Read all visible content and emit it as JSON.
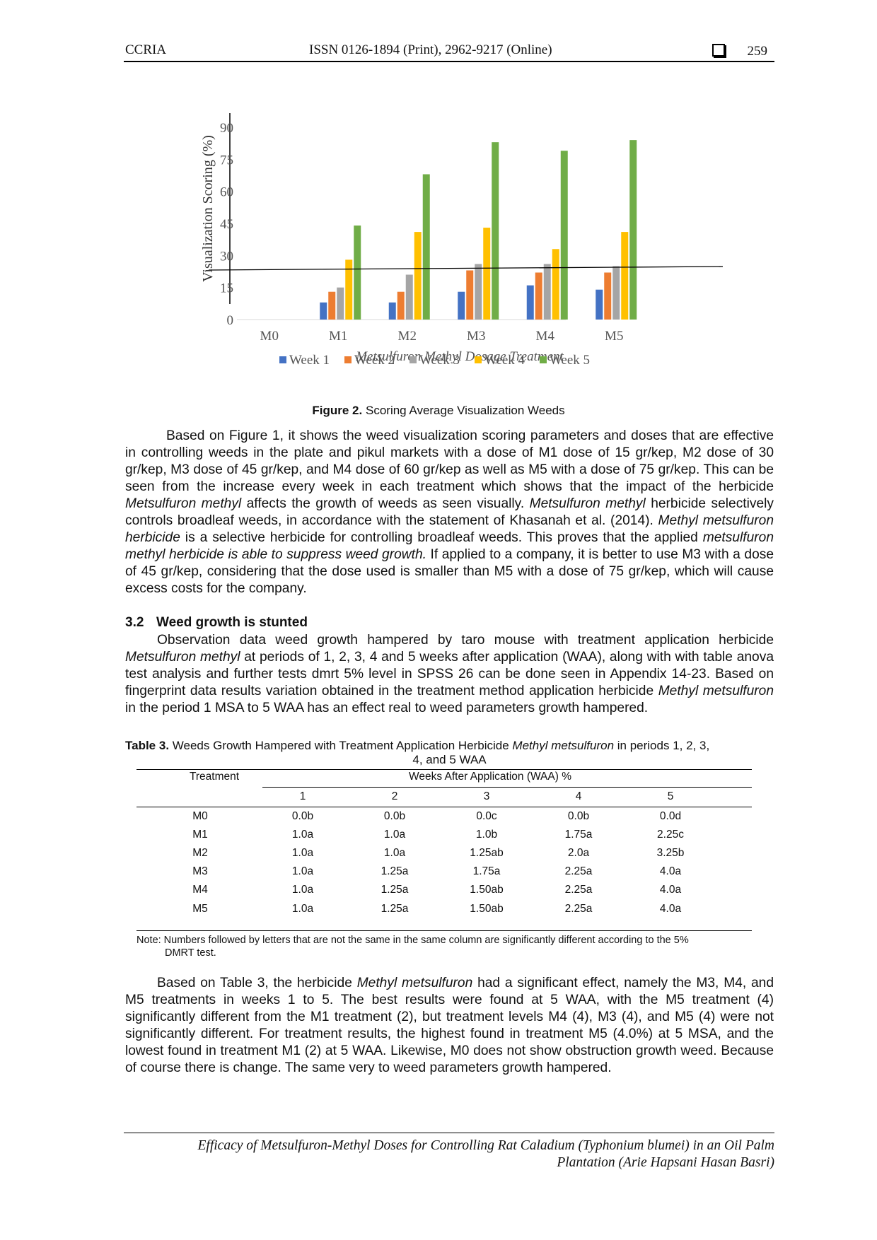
{
  "header": {
    "journal": "CCRIA",
    "issn": "ISSN 0126-1894 (Print), 2962-9217 (Online)",
    "page_number": "259"
  },
  "figure": {
    "label": "Figure 2.",
    "caption": "Scoring Average Visualization Weeds"
  },
  "chart_data": {
    "type": "bar",
    "categories": [
      "M0",
      "M1",
      "M2",
      "M3",
      "M4",
      "M5"
    ],
    "series": [
      {
        "name": "Week 1",
        "color": "#4472C4",
        "values": [
          0,
          8,
          8,
          13,
          16,
          14
        ]
      },
      {
        "name": "Week 2",
        "color": "#ED7D31",
        "values": [
          0,
          13,
          13,
          23,
          22,
          22
        ]
      },
      {
        "name": "Week 3",
        "color": "#A5A5A5",
        "values": [
          0,
          15,
          21,
          26,
          26,
          25
        ]
      },
      {
        "name": "Week 4",
        "color": "#FFC000",
        "values": [
          0,
          28,
          41,
          43,
          33,
          41
        ]
      },
      {
        "name": "Week 5",
        "color": "#70AD47",
        "values": [
          0,
          44,
          68,
          83,
          79,
          84
        ]
      }
    ],
    "y_ticks": [
      0,
      15,
      30,
      45,
      60,
      75,
      90
    ],
    "ylim": [
      0,
      90
    ],
    "ylabel": "Visualization Scoring (%)",
    "xlabel": "Metsulfuron Methyl Dosage Treatment",
    "legend": "bottom",
    "grid": false
  },
  "p1": {
    "t1": "Based on Figure 1, it shows the weed visualization scoring parameters and doses that are effective in controlling weeds in the plate and pikul markets with a dose of M1 dose of 15 gr/kep, M2 dose of 30 gr/kep, M3 dose of 45 gr/kep, and M4 dose of 60 gr/kep as well as M5 with a dose of 75 gr/kep. This can be seen from the increase every week in each treatment which shows that the impact of the herbicide ",
    "i1": "Metsulfuron methyl",
    "t2": " affects the growth of weeds as seen visually. ",
    "i2": "Metsulfuron methyl",
    "t3": " herbicide selectively controls broadleaf weeds, in accordance with the statement of Khasanah et al. (2014). ",
    "i3": "Methyl metsulfuron herbicide",
    "t4": " is a selective herbicide for controlling broadleaf weeds. This proves that the applied ",
    "i4": "metsulfuron methyl herbicide is able to suppress weed growth.",
    "t5": " If applied to a company, it is better to use M3 with a dose of 45 gr/kep, considering that the dose used is smaller than M5 with a dose of 75 gr/kep, which will cause excess costs for the company."
  },
  "section": {
    "number": "3.2",
    "title": "Weed growth is stunted"
  },
  "p2": {
    "t1": "Observation data weed growth hampered by taro mouse with treatment application herbicide ",
    "i1": "Metsulfuron methyl",
    "t2": " at periods of 1, 2, 3, 4 and 5 weeks after application (WAA), along with with table anova test analysis and further tests dmrt 5% level in SPSS 26 can be done seen in Appendix 14-23. Based on fingerprint data results variation obtained in the treatment method application herbicide ",
    "i2": "Methyl metsulfuron",
    "t3": " in the period 1 MSA to 5 WAA has an effect real to weed parameters growth hampered."
  },
  "table": {
    "label": "Table 3.",
    "caption_t1": " Weeds Growth Hampered with Treatment Application Herbicide ",
    "caption_i1": "Methyl metsulfuron",
    "caption_t2": " in periods 1, 2, 3,",
    "caption_t3": "4, and 5 WAA",
    "header_treatment": "Treatment",
    "header_group": "Weeks After Application (WAA) %",
    "weeks": [
      "1",
      "2",
      "3",
      "4",
      "5"
    ],
    "rows": [
      {
        "treatment": "M0",
        "values": [
          "0.0b",
          "0.0b",
          "0.0c",
          "0.0b",
          "0.0d"
        ]
      },
      {
        "treatment": "M1",
        "values": [
          "1.0a",
          "1.0a",
          "1.0b",
          "1.75a",
          "2.25c"
        ]
      },
      {
        "treatment": "M2",
        "values": [
          "1.0a",
          "1.0a",
          "1.25ab",
          "2.0a",
          "3.25b"
        ]
      },
      {
        "treatment": "M3",
        "values": [
          "1.0a",
          "1.25a",
          "1.75a",
          "2.25a",
          "4.0a"
        ]
      },
      {
        "treatment": "M4",
        "values": [
          "1.0a",
          "1.25a",
          "1.50ab",
          "2.25a",
          "4.0a"
        ]
      },
      {
        "treatment": "M5",
        "values": [
          "1.0a",
          "1.25a",
          "1.50ab",
          "2.25a",
          "4.0a"
        ]
      }
    ],
    "note_line1": "Note: Numbers followed by letters that are not the same in the same column are significantly different according to the 5%",
    "note_line2": "DMRT test."
  },
  "p3": {
    "t1": "Based on Table 3, the herbicide ",
    "i1": "Methyl metsulfuron",
    "t2": " had a significant effect, namely the M3, M4, and M5 treatments in weeks 1 to 5. The best results were found at 5 WAA, with the M5 treatment (4) significantly different from the M1 treatment (2), but treatment levels M4 (4), M3 (4), and M5 (4) were not significantly different. For treatment results, the highest found in treatment M5 (4.0%) at 5 MSA, and the lowest found in treatment M1 (2) at 5 WAA. Likewise, M0 does not show obstruction growth weed. Because of course there is change. The same very to weed parameters growth hampered."
  },
  "footer": {
    "line1": "Efficacy of Metsulfuron-Methyl Doses for Controlling Rat Caladium (Typhonium blumei) in an Oil Palm",
    "line2": "Plantation (Arie Hapsani Hasan Basri)"
  }
}
